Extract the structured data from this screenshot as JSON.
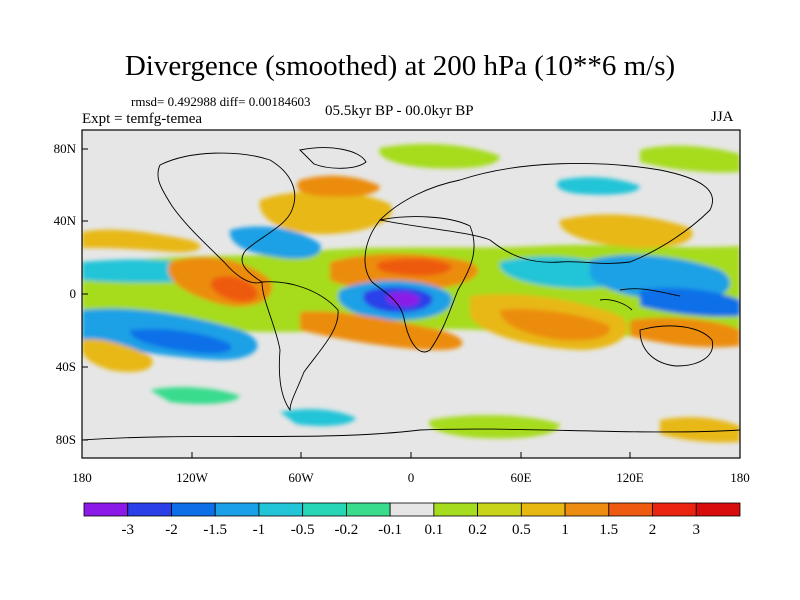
{
  "header": {
    "title": "Divergence (smoothed) at 200 hPa (10**6 m/s)",
    "stats": "rmsd= 0.492988 diff= 0.00184603",
    "experiment": "Expt = temfg-temea",
    "period": "05.5kyr BP - 00.0kyr BP",
    "season": "JJA"
  },
  "map": {
    "projection": "cylindrical equidistant",
    "lon_range": [
      -180,
      180
    ],
    "lat_range": [
      -90,
      90
    ],
    "lat_tick_labels": [
      "80N",
      "40N",
      "0",
      "40S",
      "80S"
    ],
    "lon_tick_labels": [
      "180",
      "120W",
      "60W",
      "0",
      "60E",
      "120E",
      "180"
    ],
    "background_color": "#e6e6e6",
    "fields": [
      {
        "region": "equatorial Atlantic / West Africa",
        "lon": -5,
        "lat": 0,
        "value": -3,
        "label": "strong convergence"
      },
      {
        "region": "eastern tropical Pacific",
        "lon": -110,
        "lat": 12,
        "value": 1.5,
        "label": "divergence band"
      },
      {
        "region": "Sahel / north Africa",
        "lon": 10,
        "lat": 14,
        "value": 2,
        "label": "divergence"
      },
      {
        "region": "south-east Pacific",
        "lon": -95,
        "lat": -18,
        "value": -1.5,
        "label": "convergence"
      },
      {
        "region": "Indian Ocean",
        "lon": 75,
        "lat": -15,
        "value": 1,
        "label": "divergence"
      },
      {
        "region": "Maritime continent",
        "lon": 130,
        "lat": -5,
        "value": -1.5,
        "label": "convergence"
      }
    ]
  },
  "colorbar": {
    "labels": [
      "-3",
      "-2",
      "-1.5",
      "-1",
      "-0.5",
      "-0.2",
      "-0.1",
      "0.1",
      "0.2",
      "0.5",
      "1",
      "1.5",
      "2",
      "3"
    ],
    "colors": [
      "#8b1ae8",
      "#2a3fe8",
      "#0d6fe8",
      "#1aa0e6",
      "#22c4d8",
      "#26d6b4",
      "#38dc8c",
      "#e6e6e6",
      "#a6dc1e",
      "#c8d41a",
      "#e8b812",
      "#ec8c10",
      "#ee5a10",
      "#ea2410",
      "#d80c0c"
    ]
  }
}
